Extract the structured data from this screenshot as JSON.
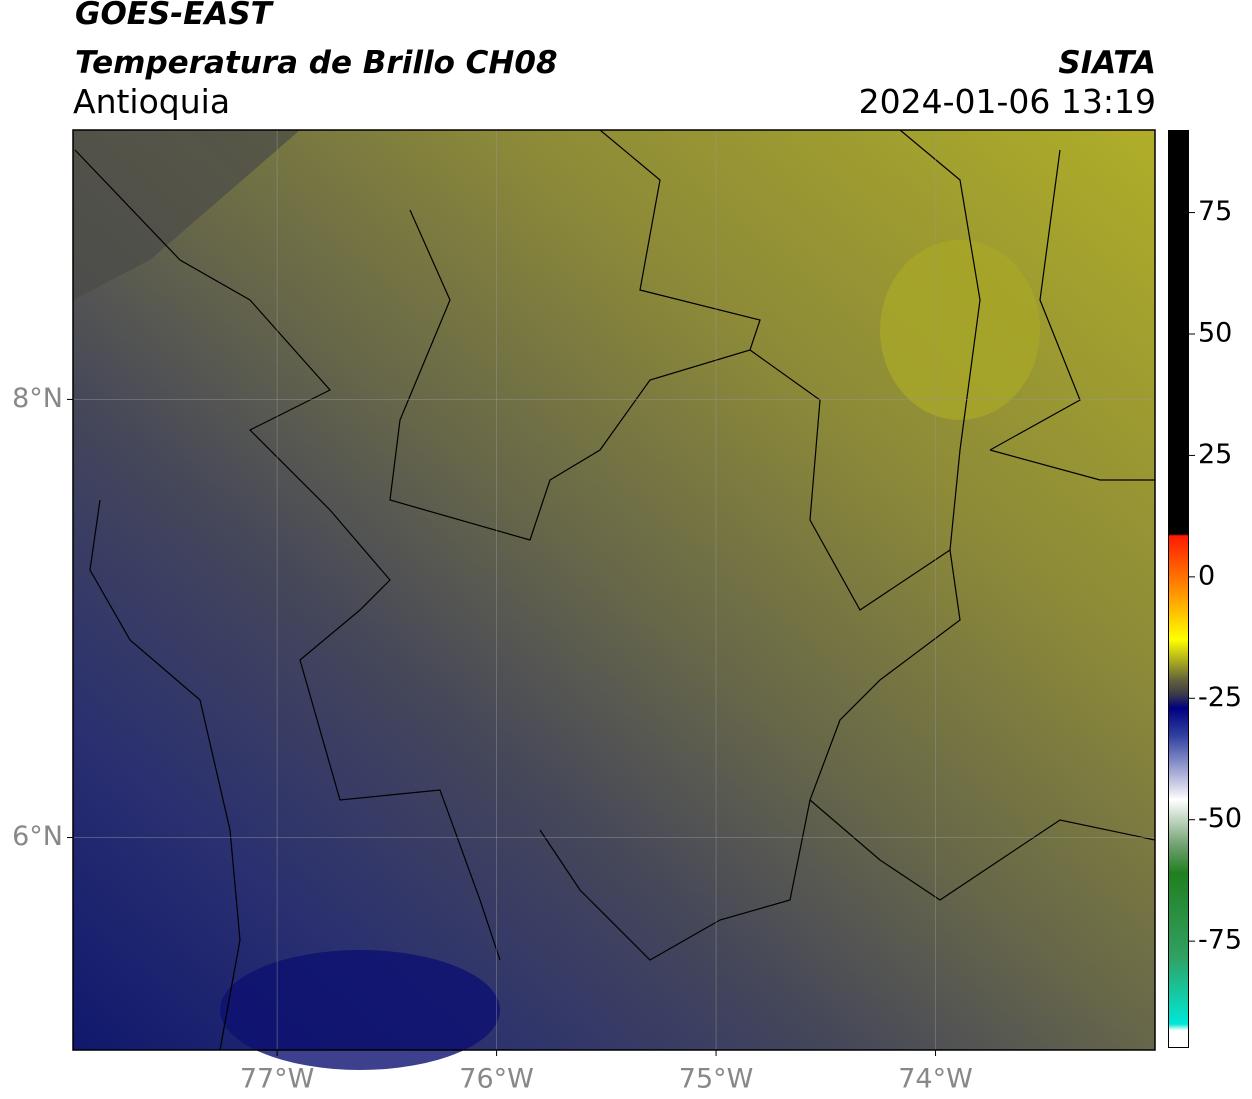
{
  "header": {
    "title": "GOES-EAST",
    "subtitle": "Temperatura de Brillo CH08",
    "region": "Antioquia",
    "source": "SIATA",
    "datetime": "2024-01-06 13:19"
  },
  "map": {
    "xlim": [
      -77.93,
      -73.0
    ],
    "ylim": [
      5.03,
      9.23
    ],
    "xticks": [
      {
        "value": -77,
        "label": "77°W"
      },
      {
        "value": -76,
        "label": "76°W"
      },
      {
        "value": -75,
        "label": "75°W"
      },
      {
        "value": -74,
        "label": "74°W"
      }
    ],
    "yticks": [
      {
        "value": 8,
        "label": "8°N"
      },
      {
        "value": 6,
        "label": "6°N"
      }
    ]
  },
  "colorbar": {
    "lim": [
      -97,
      92
    ],
    "ticks": [
      75,
      50,
      25,
      0,
      -25,
      -50,
      -75
    ]
  }
}
